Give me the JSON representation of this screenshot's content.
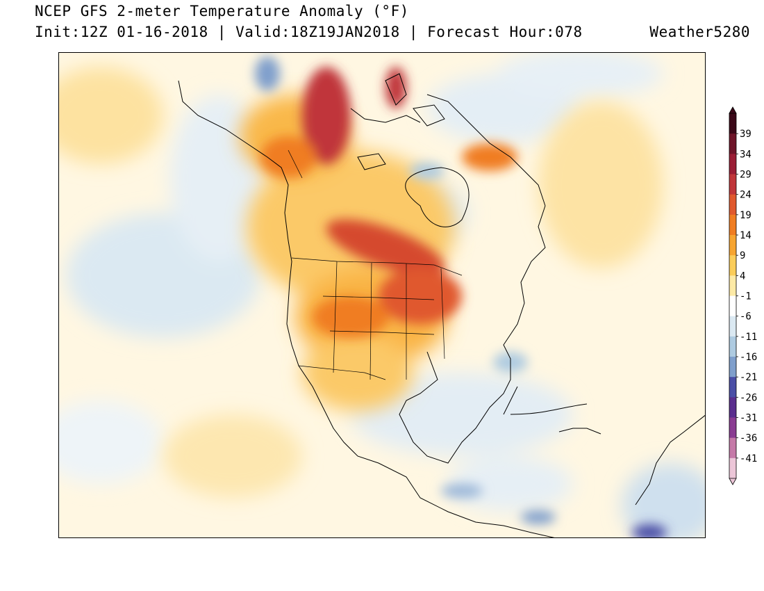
{
  "header": {
    "title": "NCEP GFS 2-meter Temperature Anomaly (°F)",
    "subtitle": "Init:12Z 01-16-2018 | Valid:18Z19JAN2018 | Forecast Hour:078",
    "credit": "Weather5280"
  },
  "colorbar": {
    "labels": [
      "39",
      "34",
      "29",
      "24",
      "19",
      "14",
      "9",
      "4",
      "-1",
      "-6",
      "-11",
      "-16",
      "-21",
      "-26",
      "-31",
      "-36",
      "-41"
    ],
    "colors": [
      "#3b0818",
      "#6e1429",
      "#9a1d35",
      "#c0363a",
      "#e0592e",
      "#f07d22",
      "#f7a531",
      "#fbcd5a",
      "#fdeaa6",
      "#ffffff",
      "#dbe9f2",
      "#aecbe1",
      "#7f9fcc",
      "#4a4ea6",
      "#5a2e8e",
      "#8a3c92",
      "#c57aa8",
      "#ecc6d8"
    ]
  },
  "map": {
    "region": "North America"
  }
}
